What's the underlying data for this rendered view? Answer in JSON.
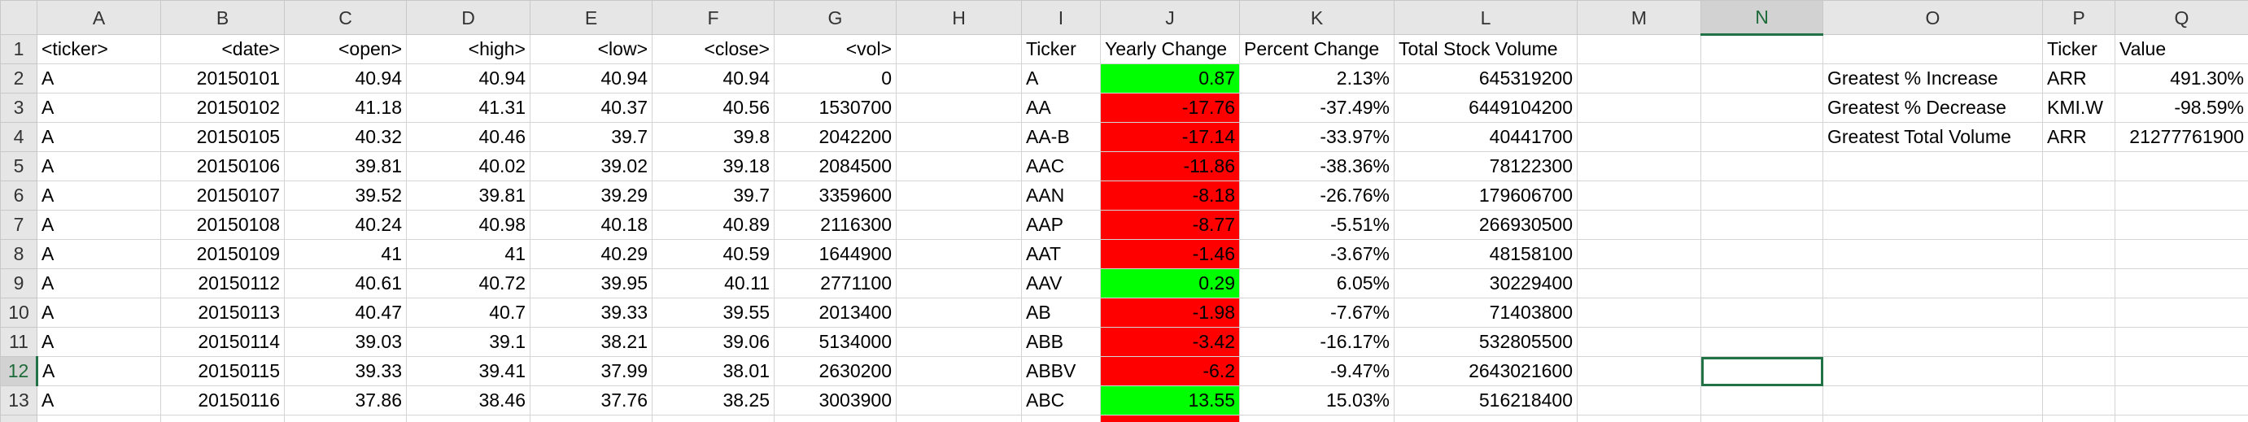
{
  "columns": [
    "A",
    "B",
    "C",
    "D",
    "E",
    "F",
    "G",
    "H",
    "I",
    "J",
    "K",
    "L",
    "M",
    "N",
    "O",
    "P",
    "Q"
  ],
  "selected_column": "N",
  "selected_row": "12",
  "active_cell": "N12",
  "colors": {
    "positive": "#00ff00",
    "negative": "#ff0000",
    "selection": "#217346"
  },
  "rows": [
    {
      "num": "1",
      "cells": {
        "A": "<ticker>",
        "B": "<date>",
        "C": "<open>",
        "D": "<high>",
        "E": "<low>",
        "F": "<close>",
        "G": "<vol>",
        "I": "Ticker",
        "J": "Yearly Change",
        "K": "Percent Change",
        "L": "Total Stock Volume",
        "P": "Ticker",
        "Q": "Value"
      }
    },
    {
      "num": "2",
      "cells": {
        "A": "A",
        "B": "20150101",
        "C": "40.94",
        "D": "40.94",
        "E": "40.94",
        "F": "40.94",
        "G": "0",
        "I": "A",
        "J": "0.87",
        "K": "2.13%",
        "L": "645319200",
        "O": "Greatest % Increase",
        "P": "ARR",
        "Q": "491.30%"
      }
    },
    {
      "num": "3",
      "cells": {
        "A": "A",
        "B": "20150102",
        "C": "41.18",
        "D": "41.31",
        "E": "40.37",
        "F": "40.56",
        "G": "1530700",
        "I": "AA",
        "J": "-17.76",
        "K": "-37.49%",
        "L": "6449104200",
        "O": "Greatest % Decrease",
        "P": "KMI.W",
        "Q": "-98.59%"
      }
    },
    {
      "num": "4",
      "cells": {
        "A": "A",
        "B": "20150105",
        "C": "40.32",
        "D": "40.46",
        "E": "39.7",
        "F": "39.8",
        "G": "2042200",
        "I": "AA-B",
        "J": "-17.14",
        "K": "-33.97%",
        "L": "40441700",
        "O": "Greatest Total Volume",
        "P": "ARR",
        "Q": "21277761900"
      }
    },
    {
      "num": "5",
      "cells": {
        "A": "A",
        "B": "20150106",
        "C": "39.81",
        "D": "40.02",
        "E": "39.02",
        "F": "39.18",
        "G": "2084500",
        "I": "AAC",
        "J": "-11.86",
        "K": "-38.36%",
        "L": "78122300"
      }
    },
    {
      "num": "6",
      "cells": {
        "A": "A",
        "B": "20150107",
        "C": "39.52",
        "D": "39.81",
        "E": "39.29",
        "F": "39.7",
        "G": "3359600",
        "I": "AAN",
        "J": "-8.18",
        "K": "-26.76%",
        "L": "179606700"
      }
    },
    {
      "num": "7",
      "cells": {
        "A": "A",
        "B": "20150108",
        "C": "40.24",
        "D": "40.98",
        "E": "40.18",
        "F": "40.89",
        "G": "2116300",
        "I": "AAP",
        "J": "-8.77",
        "K": "-5.51%",
        "L": "266930500"
      }
    },
    {
      "num": "8",
      "cells": {
        "A": "A",
        "B": "20150109",
        "C": "41",
        "D": "41",
        "E": "40.29",
        "F": "40.59",
        "G": "1644900",
        "I": "AAT",
        "J": "-1.46",
        "K": "-3.67%",
        "L": "48158100"
      }
    },
    {
      "num": "9",
      "cells": {
        "A": "A",
        "B": "20150112",
        "C": "40.61",
        "D": "40.72",
        "E": "39.95",
        "F": "40.11",
        "G": "2771100",
        "I": "AAV",
        "J": "0.29",
        "K": "6.05%",
        "L": "30229400"
      }
    },
    {
      "num": "10",
      "cells": {
        "A": "A",
        "B": "20150113",
        "C": "40.47",
        "D": "40.7",
        "E": "39.33",
        "F": "39.55",
        "G": "2013400",
        "I": "AB",
        "J": "-1.98",
        "K": "-7.67%",
        "L": "71403800"
      }
    },
    {
      "num": "11",
      "cells": {
        "A": "A",
        "B": "20150114",
        "C": "39.03",
        "D": "39.1",
        "E": "38.21",
        "F": "39.06",
        "G": "5134000",
        "I": "ABB",
        "J": "-3.42",
        "K": "-16.17%",
        "L": "532805500"
      }
    },
    {
      "num": "12",
      "cells": {
        "A": "A",
        "B": "20150115",
        "C": "39.33",
        "D": "39.41",
        "E": "37.99",
        "F": "38.01",
        "G": "2630200",
        "I": "ABBV",
        "J": "-6.2",
        "K": "-9.47%",
        "L": "2643021600"
      }
    },
    {
      "num": "13",
      "cells": {
        "A": "A",
        "B": "20150116",
        "C": "37.86",
        "D": "38.46",
        "E": "37.76",
        "F": "38.25",
        "G": "3003900",
        "I": "ABC",
        "J": "13.55",
        "K": "15.03%",
        "L": "516218400"
      }
    }
  ]
}
